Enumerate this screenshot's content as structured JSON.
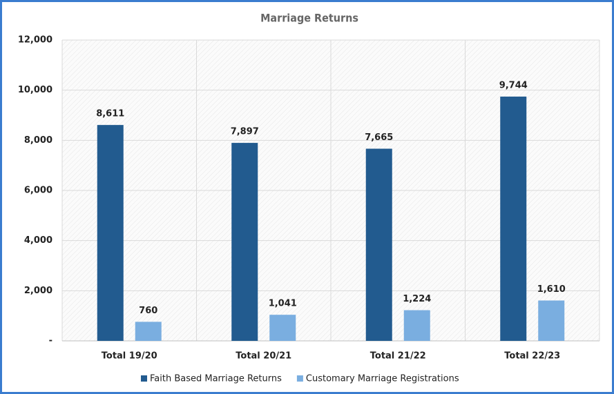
{
  "chart_data": {
    "type": "bar",
    "title": "Marriage Returns",
    "categories": [
      "Total 19/20",
      "Total 20/21",
      "Total 21/22",
      "Total 22/23"
    ],
    "series": [
      {
        "name": "Faith Based Marriage Returns",
        "color": "#225b8f",
        "values": [
          8611,
          7897,
          7665,
          9744
        ],
        "value_labels": [
          "8,611",
          "7,897",
          "7,665",
          "9,744"
        ]
      },
      {
        "name": "Customary Marriage Registrations",
        "color": "#7aaee0",
        "values": [
          760,
          1041,
          1224,
          1610
        ],
        "value_labels": [
          "760",
          "1,041",
          "1,224",
          "1,610"
        ]
      }
    ],
    "ylim": [
      0,
      12000
    ],
    "yticks": [
      {
        "value": 0,
        "label": "-"
      },
      {
        "value": 2000,
        "label": "2,000"
      },
      {
        "value": 4000,
        "label": "4,000"
      },
      {
        "value": 6000,
        "label": "6,000"
      },
      {
        "value": 8000,
        "label": "8,000"
      },
      {
        "value": 10000,
        "label": "10,000"
      },
      {
        "value": 12000,
        "label": "12,000"
      }
    ],
    "grid": true,
    "legend": "bottom"
  }
}
